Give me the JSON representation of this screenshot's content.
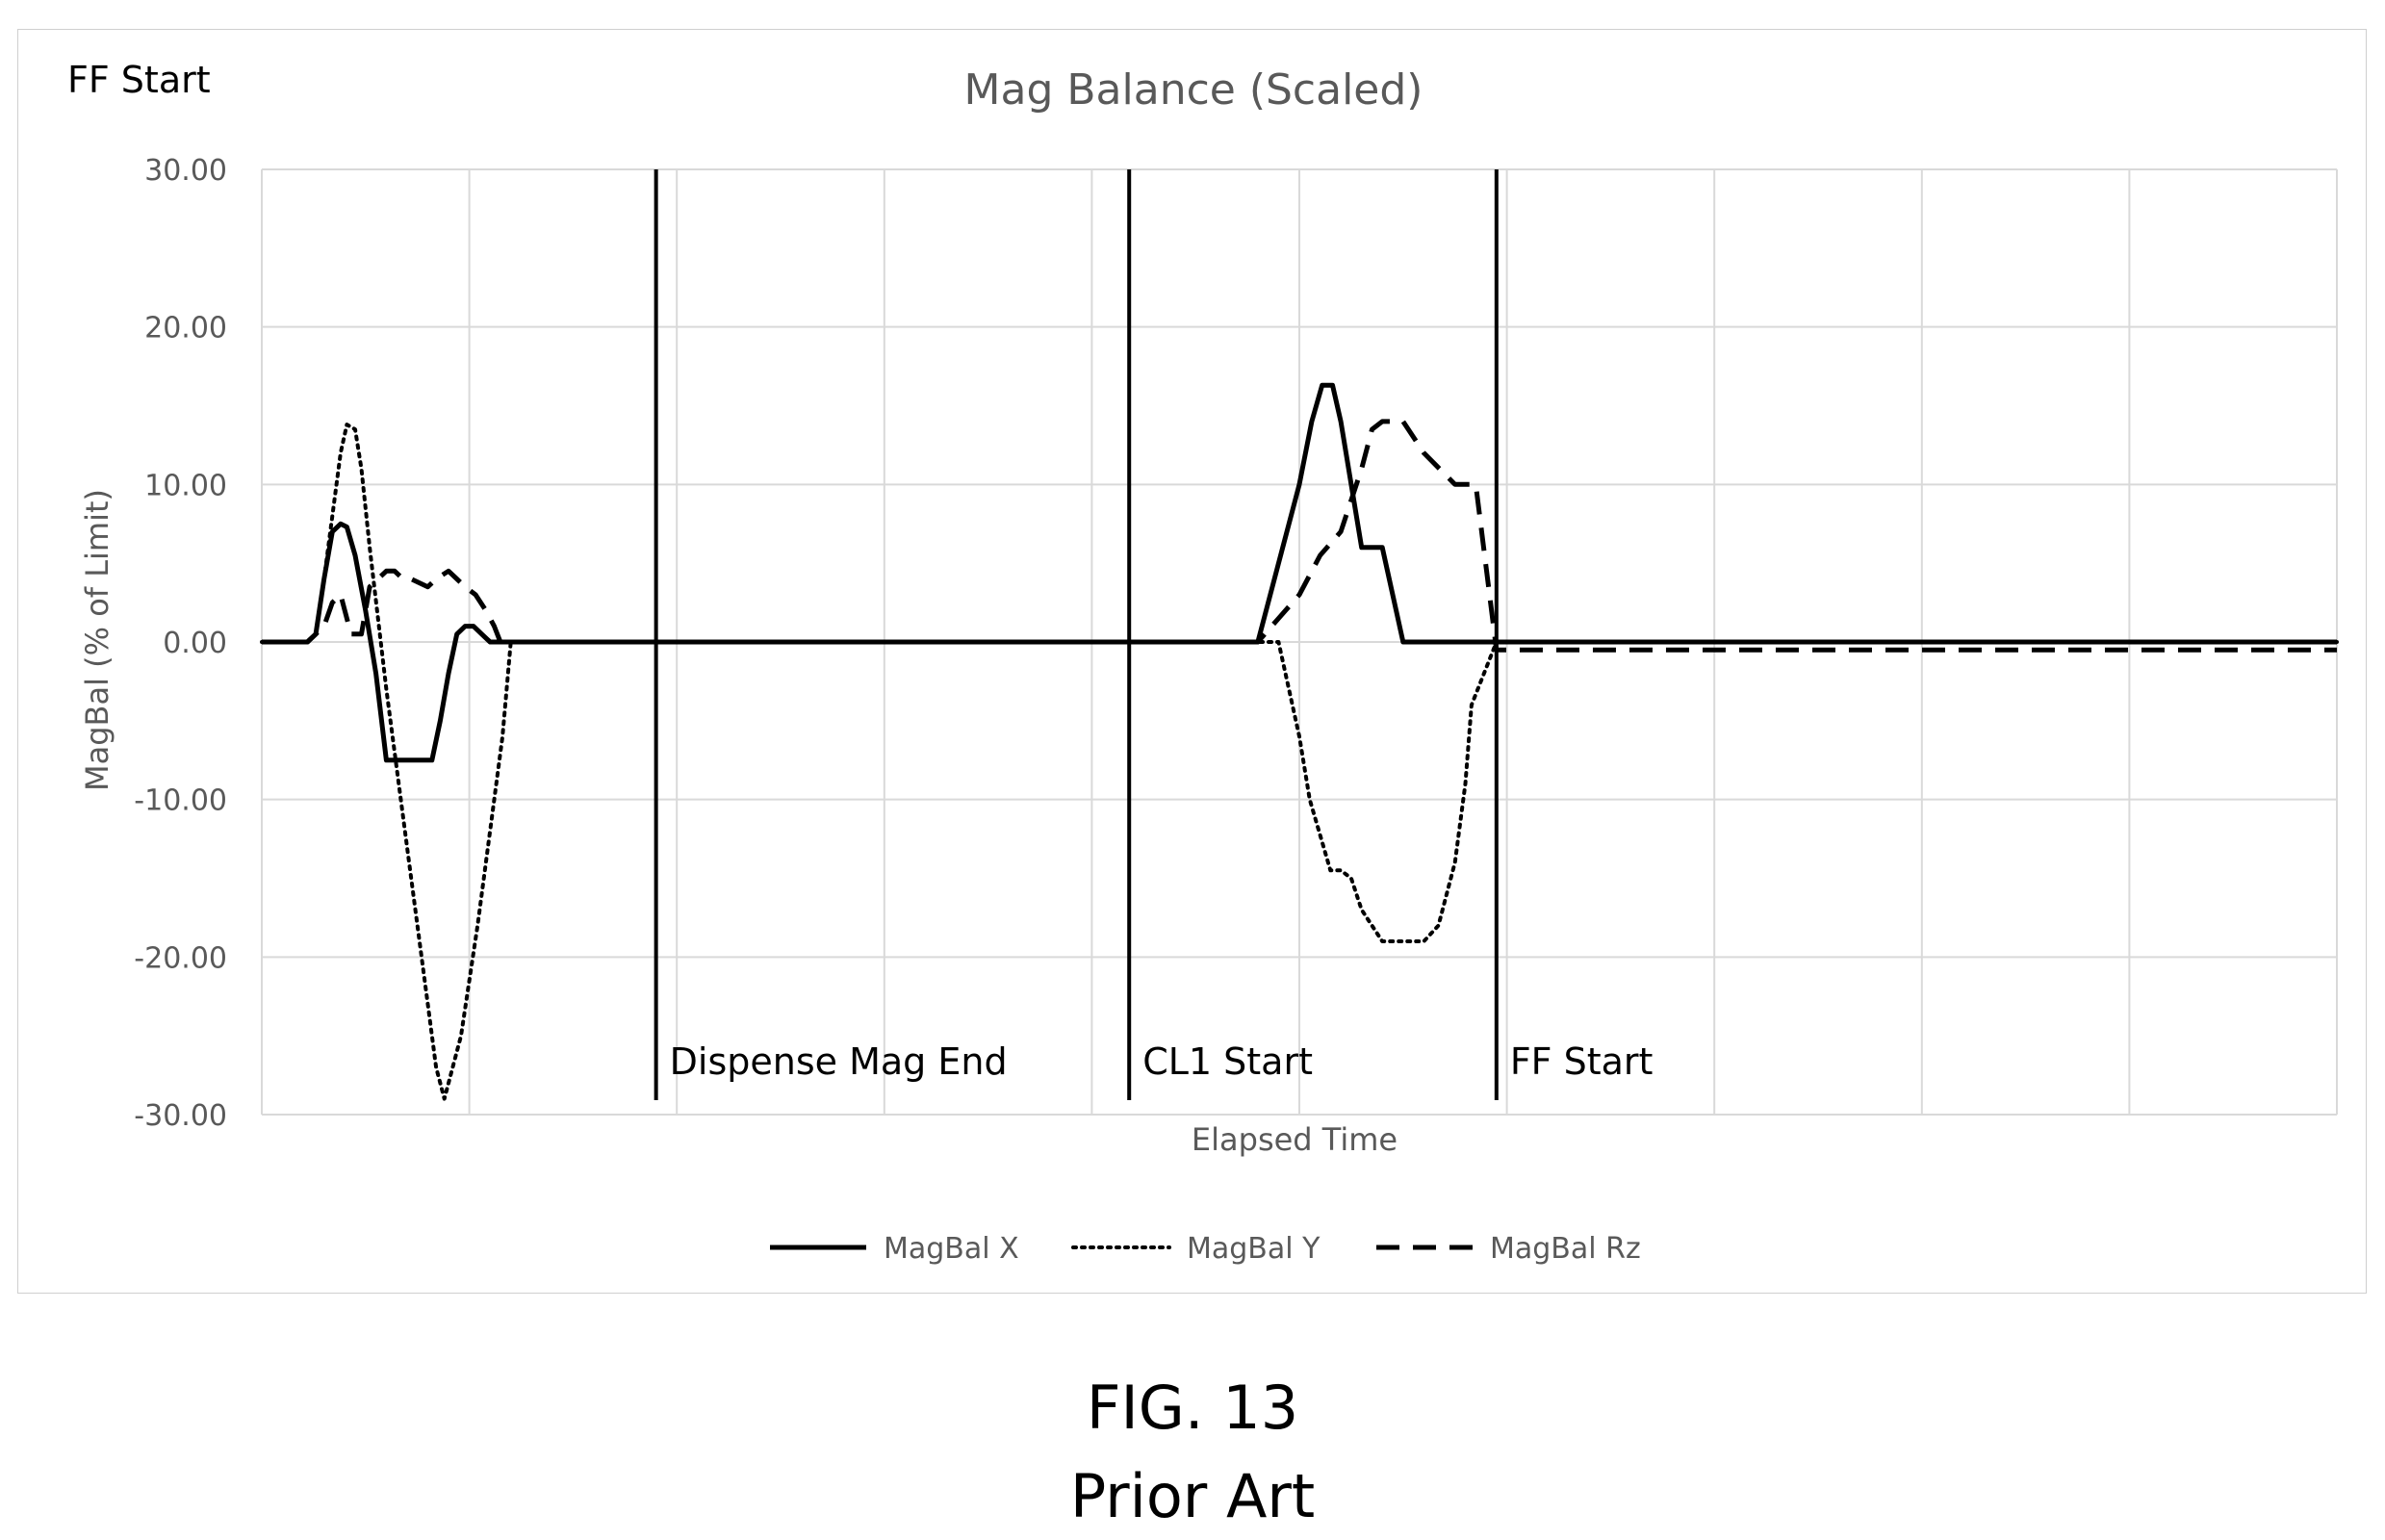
{
  "chart_data": {
    "type": "line",
    "title": "Mag Balance (Scaled)",
    "xlabel": "Elapsed Time",
    "ylabel": "MagBal (% of Limit)",
    "ylim": [
      -30,
      30
    ],
    "yticks": [
      "30.00",
      "20.00",
      "10.00",
      "0.00",
      "-10.00",
      "-20.00",
      "-30.00"
    ],
    "xlim": [
      0,
      100
    ],
    "grid": true,
    "legend_position": "bottom",
    "corner_label": "FF Start",
    "event_markers": [
      {
        "label": "Dispense Mag End",
        "x": 19.0
      },
      {
        "label": "CL1 Start",
        "x": 41.8
      },
      {
        "label": "FF Start",
        "x": 59.5
      }
    ],
    "series": [
      {
        "name": "MagBal X",
        "style": "solid",
        "x": [
          0,
          2.2,
          2.6,
          3.0,
          3.4,
          3.8,
          4.1,
          4.5,
          5.0,
          5.5,
          6.0,
          7.0,
          8.2,
          8.6,
          9.0,
          9.4,
          9.8,
          10.2,
          10.6,
          11.0,
          14,
          19,
          30,
          41.8,
          48.0,
          49.0,
          50.0,
          50.6,
          51.1,
          51.6,
          52.0,
          52.5,
          53.0,
          54.0,
          55.0,
          56.0,
          57.0,
          59.5,
          70,
          85,
          100
        ],
        "y": [
          0,
          0,
          0.5,
          4.0,
          7.0,
          7.5,
          7.3,
          5.5,
          2.0,
          -2.0,
          -7.5,
          -7.5,
          -7.5,
          -5.0,
          -2.0,
          0.5,
          1.0,
          1.0,
          0.5,
          0,
          0,
          0,
          0,
          0,
          0,
          5.0,
          10.0,
          14.0,
          16.3,
          16.3,
          14.0,
          10.0,
          6.0,
          6.0,
          0,
          0,
          0,
          0,
          0,
          0,
          0
        ]
      },
      {
        "name": "MagBal Y",
        "style": "dotted",
        "x": [
          0,
          2.2,
          2.6,
          3.0,
          3.4,
          3.8,
          4.1,
          4.5,
          4.8,
          5.2,
          6.0,
          7.0,
          8.0,
          8.4,
          8.8,
          9.6,
          10.4,
          11.2,
          11.6,
          12.0,
          14,
          19,
          30,
          41.8,
          48.0,
          49.0,
          49.5,
          50.0,
          50.5,
          51.5,
          52.0,
          52.5,
          53.0,
          54.0,
          55.0,
          56.0,
          56.7,
          57.5,
          58.0,
          58.3,
          59.5,
          70,
          85,
          100
        ],
        "y": [
          0,
          0,
          0.5,
          4.0,
          8.0,
          12.0,
          13.8,
          13.5,
          11.0,
          6.0,
          -3.0,
          -13.0,
          -23.0,
          -27.0,
          -29.0,
          -25.0,
          -18.0,
          -10.0,
          -6.0,
          0,
          0,
          0,
          0,
          0,
          0,
          0,
          -3.0,
          -6.0,
          -10.0,
          -14.5,
          -14.5,
          -15.0,
          -17.0,
          -19.0,
          -19.0,
          -19.0,
          -18.0,
          -14.0,
          -9.0,
          -4.0,
          0,
          0,
          0,
          0
        ]
      },
      {
        "name": "MagBal Rz",
        "style": "dashed",
        "x": [
          0,
          2.2,
          2.6,
          3.0,
          3.4,
          3.8,
          4.3,
          4.8,
          5.2,
          5.6,
          6.0,
          6.4,
          6.8,
          7.2,
          8.0,
          8.4,
          9.0,
          9.4,
          9.8,
          10.3,
          10.8,
          11.2,
          11.5,
          14,
          19,
          30,
          41.8,
          48.0,
          49.0,
          50.0,
          51.0,
          52.0,
          52.5,
          53.0,
          53.5,
          54.0,
          55.0,
          56.0,
          57.5,
          58.5,
          59.5,
          70,
          85,
          100
        ],
        "y": [
          0,
          0,
          0.5,
          1.0,
          2.5,
          3.0,
          0.5,
          0.5,
          3.5,
          4.0,
          4.5,
          4.5,
          4.0,
          4.0,
          3.5,
          4.0,
          4.5,
          4.0,
          3.5,
          3.0,
          2.0,
          1.0,
          0,
          0,
          0,
          0,
          0,
          0,
          1.5,
          3.0,
          5.5,
          7.0,
          9.0,
          11.0,
          13.5,
          14.0,
          14.0,
          12.0,
          10.0,
          10.0,
          -0.5,
          -0.5,
          -0.5,
          -0.5
        ]
      }
    ]
  },
  "caption": {
    "figure": "FIG. 13",
    "subtitle": "Prior Art"
  }
}
